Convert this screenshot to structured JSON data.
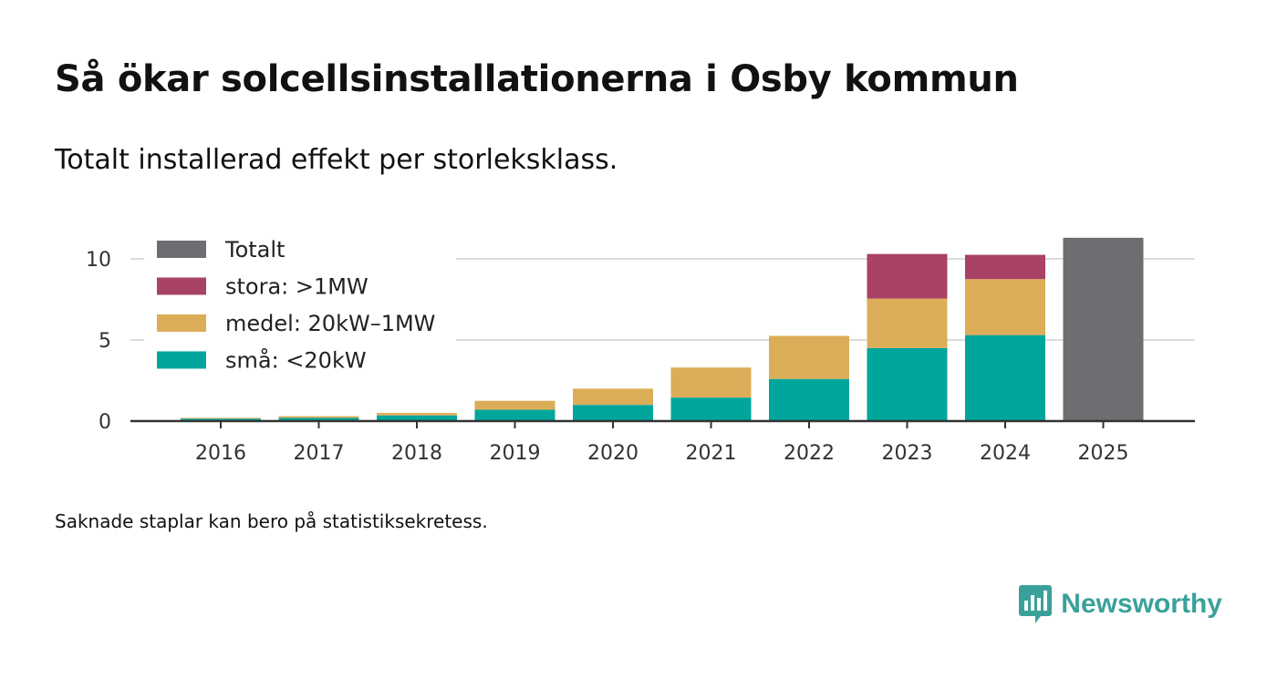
{
  "title": "Så ökar solcellsinstallationerna i Osby kommun",
  "subtitle": "Totalt installerad effekt per storleksklass.",
  "footnote": "Saknade staplar kan bero på statistiksekretess.",
  "brand": {
    "name": "Newsworthy",
    "color": "#3aa19a"
  },
  "chart_data": {
    "type": "bar",
    "stacked": true,
    "categories": [
      "2016",
      "2017",
      "2018",
      "2019",
      "2020",
      "2021",
      "2022",
      "2023",
      "2024",
      "2025"
    ],
    "ylim": [
      0,
      12
    ],
    "yticks": [
      0,
      5,
      10
    ],
    "ytick_labels": [
      "0",
      "5",
      "10"
    ],
    "xlabel": "",
    "ylabel": "",
    "grid": true,
    "legend_position": "top-left",
    "series": [
      {
        "name": "små: <20kW",
        "color": "#00a69b",
        "values": [
          0.15,
          0.2,
          0.35,
          0.7,
          1.0,
          1.45,
          2.6,
          4.5,
          5.3,
          null
        ]
      },
      {
        "name": "medel: 20kW–1MW",
        "color": "#dcad58",
        "values": [
          0.05,
          0.1,
          0.15,
          0.55,
          1.0,
          1.85,
          2.65,
          3.05,
          3.45,
          null
        ]
      },
      {
        "name": "stora: >1MW",
        "color": "#a84267",
        "values": [
          null,
          null,
          null,
          null,
          null,
          null,
          null,
          2.75,
          1.5,
          null
        ]
      },
      {
        "name": "Totalt",
        "color": "#6e6d72",
        "values": [
          null,
          null,
          null,
          null,
          null,
          null,
          null,
          null,
          null,
          11.3
        ]
      }
    ],
    "legend": [
      "Totalt",
      "stora: >1MW",
      "medel: 20kW–1MW",
      "små: <20kW"
    ]
  }
}
